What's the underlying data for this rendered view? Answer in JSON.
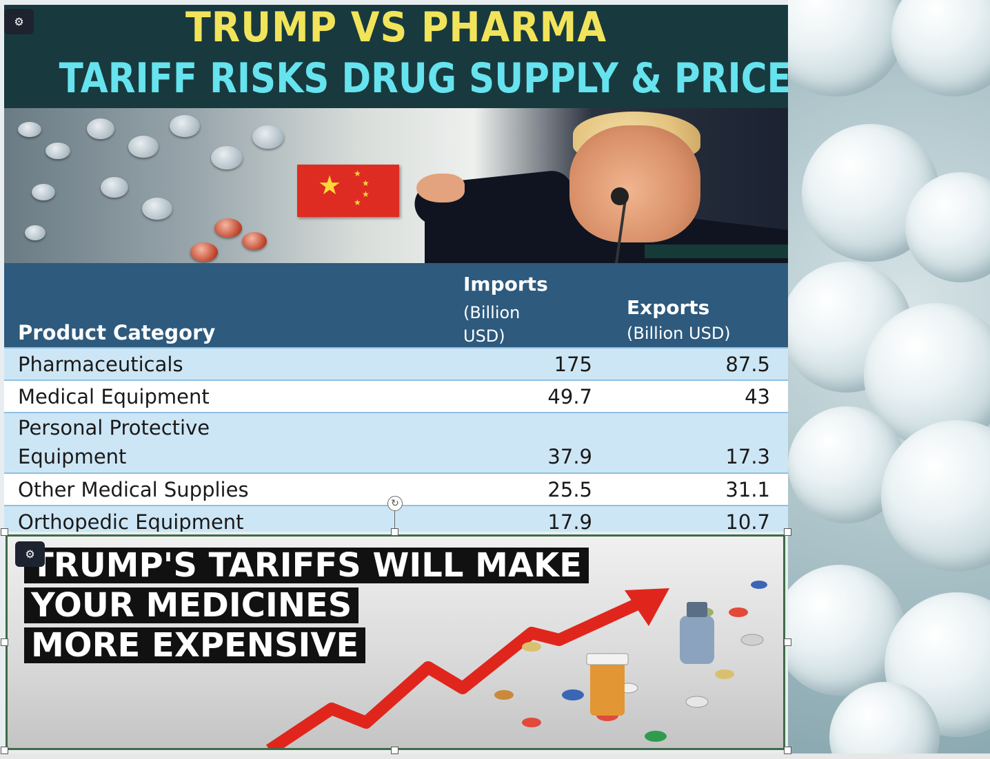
{
  "banner": {
    "title_line1": "TRUMP VS PHARMA",
    "title_line2": "TARIFF RISKS DRUG SUPPLY & PRICES",
    "ai_badge_icon": "brain-icon"
  },
  "table": {
    "headers": {
      "category": "Product Category",
      "imports_main": "Imports",
      "imports_sub": "(Billion USD)",
      "exports_main": "Exports",
      "exports_sub": "(Billion USD)"
    },
    "rows": [
      {
        "category": "Pharmaceuticals",
        "imports": "175",
        "exports": "87.5"
      },
      {
        "category": "Medical Equipment",
        "imports": "49.7",
        "exports": "43"
      },
      {
        "category_line1": "Personal Protective",
        "category_line2": "Equipment",
        "imports": "37.9",
        "exports": "17.3"
      },
      {
        "category": "Other Medical Supplies",
        "imports": "25.5",
        "exports": "31.1"
      },
      {
        "category": "Orthopedic Equipment",
        "imports": "17.9",
        "exports": "10.7"
      }
    ]
  },
  "bottom_image": {
    "line1": "TRUMP'S TARIFFS WILL MAKE",
    "line2": "YOUR MEDICINES",
    "line3": "MORE EXPENSIVE",
    "ai_badge_icon": "brain-icon"
  },
  "colors": {
    "title_yellow": "#f2e45a",
    "title_cyan": "#66e3ee",
    "header_blue": "#2d5a7d",
    "row_blue": "#cde6f5",
    "selection_border": "#3d6b46",
    "arrow_red": "#e0261c"
  }
}
